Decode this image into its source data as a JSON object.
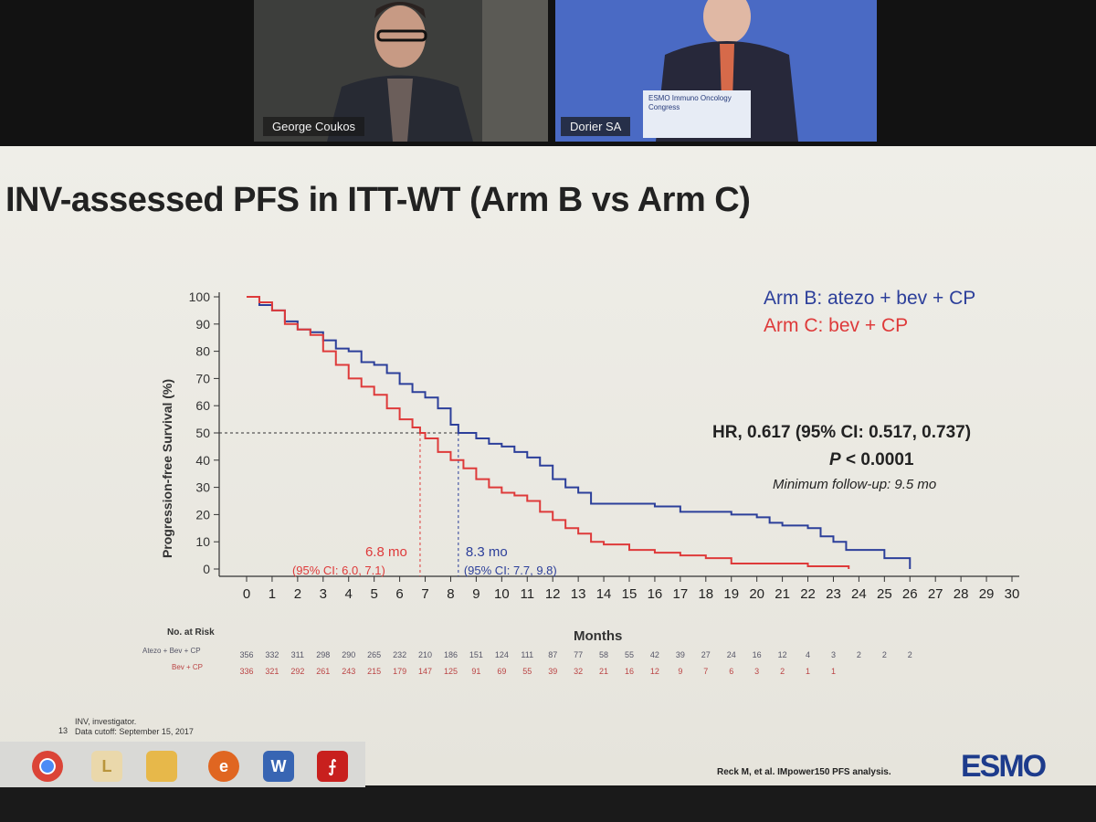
{
  "video": {
    "participants": [
      {
        "name": "George Coukos"
      },
      {
        "name": "Dorier SA",
        "podium_sign": "ESMO Immuno Oncology Congress"
      }
    ]
  },
  "slide": {
    "title": "INV-assessed PFS in ITT-WT (Arm B vs Arm C)",
    "legend": [
      {
        "label": "Arm B: atezo + bev + CP",
        "color": "#2c3f9a"
      },
      {
        "label": "Arm C: bev + CP",
        "color": "#de3a3a"
      }
    ],
    "hr_text": "HR, 0.617 (95% CI: 0.517, 0.737)",
    "p_label": "P",
    "p_value": " < 0.0001",
    "followup": "Minimum follow-up: 9.5 mo",
    "median_c": {
      "value": "6.8 mo",
      "ci": "(95% CI: 6.0, 7.1)"
    },
    "median_b": {
      "value": "8.3 mo",
      "ci": "(95% CI: 7.7, 9.8)"
    },
    "risk": {
      "header": "No. at Risk",
      "arm_b_label": "Atezo + Bev + CP",
      "arm_c_label": "Bev + CP",
      "arm_b": [
        "356",
        "332",
        "311",
        "298",
        "290",
        "265",
        "232",
        "210",
        "186",
        "151",
        "124",
        "111",
        "87",
        "77",
        "58",
        "55",
        "42",
        "39",
        "27",
        "24",
        "16",
        "12",
        "4",
        "3",
        "2",
        "2",
        "2"
      ],
      "arm_c": [
        "336",
        "321",
        "292",
        "261",
        "243",
        "215",
        "179",
        "147",
        "125",
        "91",
        "69",
        "55",
        "39",
        "32",
        "21",
        "16",
        "12",
        "9",
        "7",
        "6",
        "3",
        "2",
        "1",
        "1"
      ]
    },
    "footnote_line1": "INV, investigator.",
    "footnote_line2": "Data cutoff: September 15, 2017",
    "slide_number": "13",
    "citation": "Reck M, et al. IMpower150 PFS analysis.",
    "logo": "ESMO"
  },
  "chart_data": {
    "type": "line",
    "xlabel": "Months",
    "ylabel": "Progression-free Survival (%)",
    "xlim": [
      0,
      30
    ],
    "ylim": [
      0,
      100
    ],
    "x_ticks": [
      0,
      1,
      2,
      3,
      4,
      5,
      6,
      7,
      8,
      9,
      10,
      11,
      12,
      13,
      14,
      15,
      16,
      17,
      18,
      19,
      20,
      21,
      22,
      23,
      24,
      25,
      26,
      27,
      28,
      29,
      30
    ],
    "y_ticks": [
      0,
      10,
      20,
      30,
      40,
      50,
      60,
      70,
      80,
      90,
      100
    ],
    "medians": [
      6.8,
      8.3
    ],
    "series": [
      {
        "name": "Arm B: atezo + bev + CP",
        "color": "#2c3f9a",
        "x": [
          0,
          0.5,
          1,
          1.5,
          2,
          2.5,
          3,
          3.5,
          4,
          4.5,
          5,
          5.5,
          6,
          6.5,
          7,
          7.5,
          8,
          8.3,
          9,
          9.5,
          10,
          10.5,
          11,
          11.5,
          12,
          12.5,
          13,
          13.5,
          14,
          15,
          16,
          17,
          18,
          19,
          20,
          20.5,
          21,
          21.5,
          22,
          22.5,
          23,
          23.5,
          24,
          24.5,
          25,
          25.5,
          26
        ],
        "y": [
          100,
          97,
          95,
          91,
          88,
          87,
          84,
          81,
          80,
          76,
          75,
          72,
          68,
          65,
          63,
          59,
          53,
          50,
          48,
          46,
          45,
          43,
          41,
          38,
          33,
          30,
          28,
          24,
          24,
          24,
          23,
          21,
          21,
          20,
          19,
          17,
          16,
          16,
          15,
          12,
          10,
          7,
          7,
          7,
          4,
          4,
          0
        ]
      },
      {
        "name": "Arm C: bev + CP",
        "color": "#de3a3a",
        "x": [
          0,
          0.5,
          1,
          1.5,
          2,
          2.5,
          3,
          3.5,
          4,
          4.5,
          5,
          5.5,
          6,
          6.5,
          6.8,
          7,
          7.5,
          8,
          8.5,
          9,
          9.5,
          10,
          10.5,
          11,
          11.5,
          12,
          12.5,
          13,
          13.5,
          14,
          15,
          16,
          17,
          18,
          19,
          20,
          21,
          22,
          23,
          23.6
        ],
        "y": [
          100,
          98,
          95,
          90,
          88,
          86,
          80,
          75,
          70,
          67,
          64,
          59,
          55,
          52,
          50,
          48,
          43,
          40,
          37,
          33,
          30,
          28,
          27,
          25,
          21,
          18,
          15,
          13,
          10,
          9,
          7,
          6,
          5,
          4,
          2,
          2,
          2,
          1,
          1,
          0
        ]
      }
    ]
  }
}
